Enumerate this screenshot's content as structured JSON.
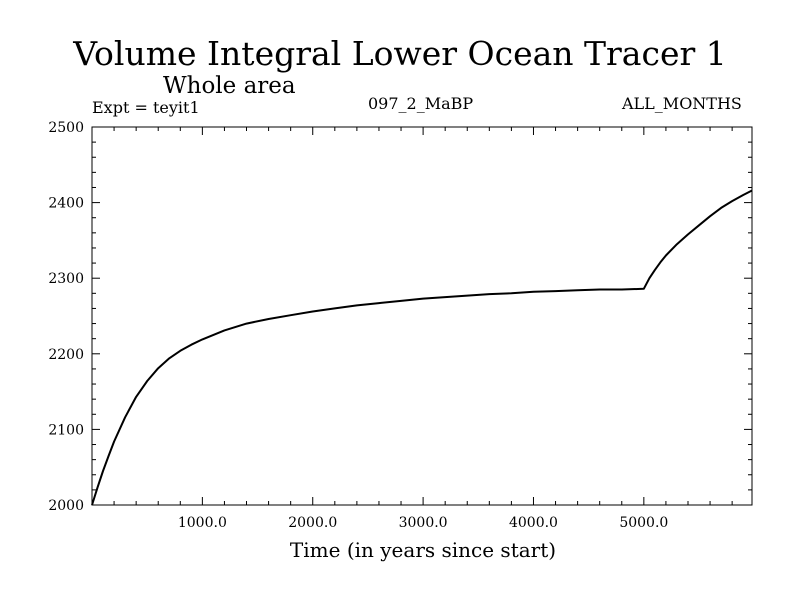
{
  "header": {
    "title": "Volume Integral Lower Ocean Tracer 1",
    "subtitle": "Whole area",
    "expt": "Expt = teyit1",
    "run_id": "097_2_MaBP",
    "months": "ALL_MONTHS"
  },
  "chart_data": {
    "type": "line",
    "title": "Volume Integral Lower Ocean Tracer 1",
    "subtitle": "Whole area",
    "xlabel": "Time (in years since start)",
    "ylabel": "",
    "xlim": [
      0,
      5980
    ],
    "ylim": [
      2000,
      2500
    ],
    "x_ticks": [
      1000,
      2000,
      3000,
      4000,
      5000
    ],
    "x_tick_labels": [
      "1000.0",
      "2000.0",
      "3000.0",
      "4000.0",
      "5000.0"
    ],
    "y_ticks": [
      2000,
      2100,
      2200,
      2300,
      2400,
      2500
    ],
    "y_tick_labels": [
      "2000",
      "2100",
      "2200",
      "2300",
      "2400",
      "2500"
    ],
    "grid": false,
    "series": [
      {
        "name": "Lower Ocean Tracer 1",
        "color": "#000000",
        "x": [
          0,
          50,
          100,
          150,
          200,
          300,
          400,
          500,
          600,
          700,
          800,
          900,
          1000,
          1200,
          1400,
          1600,
          1800,
          2000,
          2200,
          2400,
          2600,
          2800,
          3000,
          3200,
          3400,
          3600,
          3800,
          4000,
          4200,
          4400,
          4600,
          4800,
          5000,
          5050,
          5100,
          5150,
          5200,
          5300,
          5400,
          5500,
          5600,
          5700,
          5800,
          5900,
          5980
        ],
        "y": [
          2000,
          2023,
          2045,
          2065,
          2084,
          2116,
          2143,
          2164,
          2181,
          2194,
          2204,
          2212,
          2219,
          2231,
          2240,
          2246,
          2251,
          2256,
          2260,
          2264,
          2267,
          2270,
          2273,
          2275,
          2277,
          2279,
          2280,
          2282,
          2283,
          2284,
          2285,
          2285,
          2286,
          2300,
          2311,
          2321,
          2330,
          2345,
          2358,
          2370,
          2382,
          2393,
          2402,
          2410,
          2416
        ]
      }
    ]
  }
}
